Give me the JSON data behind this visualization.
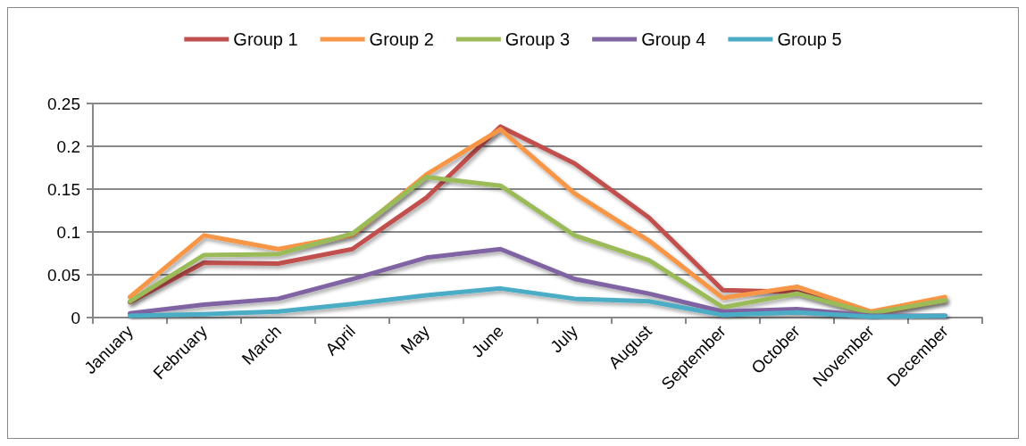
{
  "chart_data": {
    "type": "line",
    "categories": [
      "January",
      "February",
      "March",
      "April",
      "May",
      "June",
      "July",
      "August",
      "September",
      "October",
      "November",
      "December"
    ],
    "series": [
      {
        "name": "Group 1",
        "color": "#c0504d",
        "values": [
          0.018,
          0.064,
          0.063,
          0.08,
          0.14,
          0.223,
          0.18,
          0.117,
          0.032,
          0.03,
          0.004,
          0.02
        ]
      },
      {
        "name": "Group 2",
        "color": "#f79646",
        "values": [
          0.024,
          0.096,
          0.08,
          0.096,
          0.167,
          0.22,
          0.145,
          0.09,
          0.023,
          0.036,
          0.007,
          0.024
        ]
      },
      {
        "name": "Group 3",
        "color": "#9bbb59",
        "values": [
          0.019,
          0.073,
          0.074,
          0.098,
          0.164,
          0.154,
          0.096,
          0.067,
          0.012,
          0.028,
          0.005,
          0.02
        ]
      },
      {
        "name": "Group 4",
        "color": "#8064a2",
        "values": [
          0.005,
          0.015,
          0.022,
          0.045,
          0.07,
          0.08,
          0.045,
          0.028,
          0.007,
          0.01,
          0.002,
          0.002
        ]
      },
      {
        "name": "Group 5",
        "color": "#4bacc6",
        "values": [
          0.002,
          0.004,
          0.007,
          0.016,
          0.026,
          0.034,
          0.022,
          0.019,
          0.003,
          0.006,
          0.001,
          0.002
        ]
      }
    ],
    "ylim": [
      0,
      0.25
    ],
    "yticks": [
      0,
      0.05,
      0.1,
      0.15,
      0.2,
      0.25
    ],
    "grid": "y",
    "legend": "top",
    "marker": "none",
    "line_style": "solid"
  }
}
